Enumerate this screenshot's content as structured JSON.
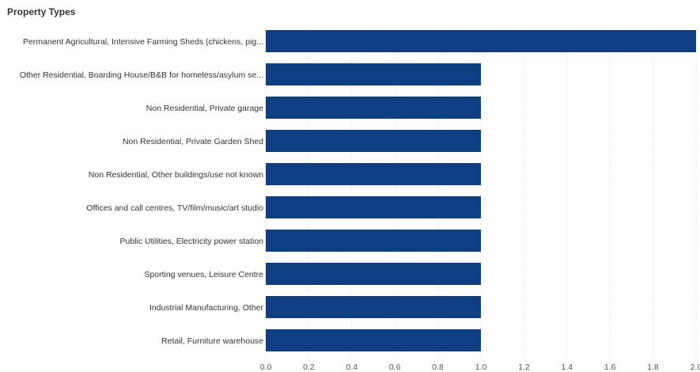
{
  "chart_data": {
    "type": "bar",
    "orientation": "horizontal",
    "title": "Property Types",
    "xlabel": "",
    "ylabel": "",
    "categories": [
      "Permanent Agricultural, Intensive Farming Sheds (chickens, pig...",
      "Other Residential, Boarding House/B&B for homeless/asylum se...",
      "Non Residential, Private garage",
      "Non Residential, Private Garden Shed",
      "Non Residential, Other buildings/use not known",
      "Offices and call centres, TV/film/music/art studio",
      "Public Utilities, Electricity power station",
      "Sporting venues, Leisure Centre",
      "Industrial Manufacturing, Other",
      "Retail, Furniture warehouse"
    ],
    "values": [
      2,
      1,
      1,
      1,
      1,
      1,
      1,
      1,
      1,
      1
    ],
    "xlim": [
      0,
      2
    ],
    "xticks": [
      "0.0",
      "0.2",
      "0.4",
      "0.6",
      "0.8",
      "1.0",
      "1.2",
      "1.4",
      "1.6",
      "1.8",
      "2.0"
    ],
    "grid": true,
    "bar_color": "#0e3f82",
    "grid_color": "#e6e6e6"
  }
}
